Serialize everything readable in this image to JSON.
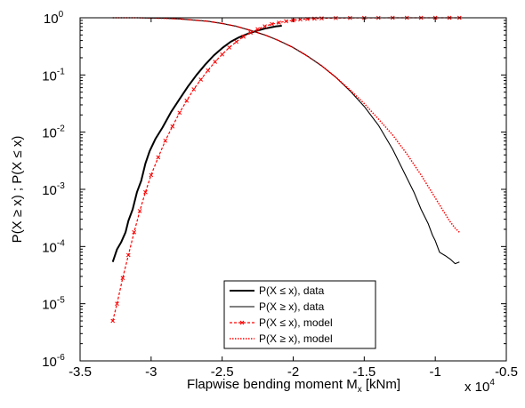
{
  "chart_data": {
    "type": "line",
    "title": "",
    "xlabel": "Flapwise bending moment M",
    "xlabel_sub": "x",
    "xlabel_unit": " [kNm]",
    "ylabel": "P(X ≥ x)   ;   P(X ≤ x)",
    "x_multiplier_label": "x 10",
    "x_multiplier_exp": "4",
    "xlim": [
      -3.5,
      -0.5
    ],
    "ylim_log10": [
      -6,
      0
    ],
    "yscale": "log",
    "grid": false,
    "legend_position": "lower-center",
    "x_ticks": [
      {
        "v": -3.5,
        "label": "-3.5"
      },
      {
        "v": -3.0,
        "label": "-3"
      },
      {
        "v": -2.5,
        "label": "-2.5"
      },
      {
        "v": -2.0,
        "label": "-2"
      },
      {
        "v": -1.5,
        "label": "-1.5"
      },
      {
        "v": -1.0,
        "label": "-1"
      },
      {
        "v": -0.5,
        "label": "-0.5"
      }
    ],
    "y_ticks": [
      {
        "e": 0,
        "base": "10",
        "exp": "0"
      },
      {
        "e": -1,
        "base": "10",
        "exp": "-1"
      },
      {
        "e": -2,
        "base": "10",
        "exp": "-2"
      },
      {
        "e": -3,
        "base": "10",
        "exp": "-3"
      },
      {
        "e": -4,
        "base": "10",
        "exp": "-4"
      },
      {
        "e": -5,
        "base": "10",
        "exp": "-5"
      },
      {
        "e": -6,
        "base": "10",
        "exp": "-6"
      }
    ],
    "series": [
      {
        "name": "P(X ≤ x), data",
        "color": "#000000",
        "dash": "",
        "width": 2.0,
        "marker": "",
        "x": [
          -3.27,
          -3.24,
          -3.21,
          -3.18,
          -3.16,
          -3.13,
          -3.1,
          -3.07,
          -3.04,
          -3.01,
          -2.97,
          -2.92,
          -2.86,
          -2.8,
          -2.74,
          -2.68,
          -2.62,
          -2.56,
          -2.5,
          -2.44,
          -2.38,
          -2.32,
          -2.26,
          -2.2,
          -2.16,
          -2.12,
          -2.08
        ],
        "log10y": [
          -4.27,
          -4.05,
          -3.92,
          -3.75,
          -3.55,
          -3.35,
          -3.05,
          -2.85,
          -2.55,
          -2.33,
          -2.12,
          -1.92,
          -1.65,
          -1.42,
          -1.2,
          -1.0,
          -0.82,
          -0.66,
          -0.53,
          -0.42,
          -0.34,
          -0.28,
          -0.23,
          -0.19,
          -0.17,
          -0.15,
          -0.14
        ]
      },
      {
        "name": "P(X ≥ x), data",
        "color": "#000000",
        "dash": "",
        "width": 1.1,
        "marker": "",
        "x": [
          -3.27,
          -3.1,
          -3.0,
          -2.9,
          -2.8,
          -2.7,
          -2.6,
          -2.5,
          -2.4,
          -2.3,
          -2.2,
          -2.1,
          -2.0,
          -1.9,
          -1.8,
          -1.7,
          -1.6,
          -1.5,
          -1.4,
          -1.3,
          -1.2,
          -1.15,
          -1.1,
          -1.05,
          -1.02,
          -1.0,
          -0.97,
          -0.93,
          -0.89,
          -0.86,
          -0.83
        ],
        "log10y": [
          0.0,
          0.0,
          -0.005,
          -0.01,
          -0.02,
          -0.04,
          -0.06,
          -0.1,
          -0.15,
          -0.22,
          -0.3,
          -0.4,
          -0.52,
          -0.67,
          -0.84,
          -1.04,
          -1.28,
          -1.55,
          -1.88,
          -2.3,
          -2.8,
          -3.05,
          -3.35,
          -3.6,
          -3.8,
          -3.9,
          -4.1,
          -4.16,
          -4.23,
          -4.3,
          -4.27
        ]
      },
      {
        "name": "P(X ≤ x), model",
        "color": "#ff0000",
        "dash": "3,2",
        "width": 1.2,
        "marker": "x",
        "x": [
          -3.27,
          -3.24,
          -3.2,
          -3.16,
          -3.12,
          -3.08,
          -3.04,
          -3.0,
          -2.95,
          -2.9,
          -2.85,
          -2.8,
          -2.75,
          -2.7,
          -2.65,
          -2.6,
          -2.55,
          -2.5,
          -2.45,
          -2.4,
          -2.35,
          -2.3,
          -2.25,
          -2.2,
          -2.15,
          -2.1,
          -2.05,
          -2.0,
          -1.95,
          -1.9,
          -1.85,
          -1.8,
          -1.7,
          -1.6,
          -1.5,
          -1.4,
          -1.3,
          -1.2,
          -1.1,
          -1.0,
          -0.9,
          -0.83
        ],
        "log10y": [
          -5.3,
          -5.0,
          -4.55,
          -4.15,
          -3.75,
          -3.38,
          -3.05,
          -2.75,
          -2.44,
          -2.15,
          -1.9,
          -1.66,
          -1.45,
          -1.25,
          -1.08,
          -0.92,
          -0.77,
          -0.64,
          -0.52,
          -0.42,
          -0.33,
          -0.26,
          -0.2,
          -0.15,
          -0.11,
          -0.085,
          -0.06,
          -0.045,
          -0.03,
          -0.022,
          -0.015,
          -0.01,
          -0.005,
          -0.003,
          -0.002,
          -0.001,
          0.0,
          0.0,
          0.0,
          0.0,
          0.0,
          0.0
        ]
      },
      {
        "name": "P(X ≥ x), model",
        "color": "#ff0000",
        "dash": "1.5,1.5",
        "width": 1.5,
        "marker": "",
        "x": [
          -3.27,
          -3.1,
          -3.0,
          -2.9,
          -2.8,
          -2.7,
          -2.6,
          -2.5,
          -2.4,
          -2.3,
          -2.2,
          -2.1,
          -2.0,
          -1.9,
          -1.8,
          -1.7,
          -1.6,
          -1.5,
          -1.4,
          -1.3,
          -1.2,
          -1.1,
          -1.0,
          -0.95,
          -0.9,
          -0.86,
          -0.83
        ],
        "log10y": [
          0.0,
          0.0,
          -0.005,
          -0.01,
          -0.02,
          -0.04,
          -0.06,
          -0.1,
          -0.15,
          -0.22,
          -0.3,
          -0.4,
          -0.52,
          -0.67,
          -0.84,
          -1.04,
          -1.26,
          -1.5,
          -1.77,
          -2.05,
          -2.38,
          -2.75,
          -3.15,
          -3.35,
          -3.55,
          -3.68,
          -3.75
        ]
      }
    ]
  }
}
